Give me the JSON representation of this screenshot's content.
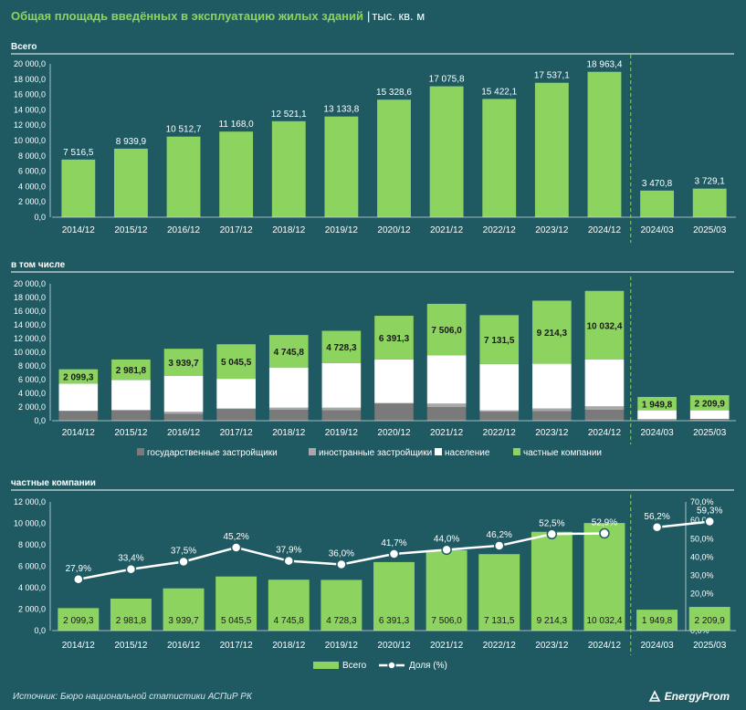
{
  "header": {
    "title": "Общая площадь введённых в эксплуатацию жилых зданий",
    "separator": "|",
    "unit": "тыс. кв. м"
  },
  "footer": {
    "source": "Источник: Бюро национальной статистики АСПиР РК",
    "logo": "EnergyProm"
  },
  "colors": {
    "background": "#1f5a63",
    "green": "#8dd35f",
    "grey_dark": "#7a7a7a",
    "grey_light": "#a8a8a8",
    "white": "#ffffff"
  },
  "chart_data": [
    {
      "type": "bar",
      "title": "Всего",
      "categories": [
        "2014/12",
        "2015/12",
        "2016/12",
        "2017/12",
        "2018/12",
        "2019/12",
        "2020/12",
        "2021/12",
        "2022/12",
        "2023/12",
        "2024/12",
        "2024/03",
        "2025/03"
      ],
      "values": [
        7516.5,
        8939.9,
        10512.7,
        11168.0,
        12521.1,
        13133.8,
        15328.6,
        17075.8,
        15422.1,
        17537.1,
        18963.4,
        3470.8,
        3729.1
      ],
      "labels": [
        "7 516,5",
        "8 939,9",
        "10 512,7",
        "11 168,0",
        "12 521,1",
        "13 133,8",
        "15 328,6",
        "17 075,8",
        "15 422,1",
        "17 537,1",
        "18 963,4",
        "3 470,8",
        "3 729,1"
      ],
      "ylim": [
        0,
        20000
      ],
      "yticks": [
        "0,0",
        "2 000,0",
        "4 000,0",
        "6 000,0",
        "8 000,0",
        "10 000,0",
        "12 000,0",
        "14 000,0",
        "16 000,0",
        "18 000,0",
        "20 000,0"
      ],
      "grid": false,
      "divider_after_index": 10
    },
    {
      "type": "bar",
      "stacked": true,
      "title": "в том числе",
      "categories": [
        "2014/12",
        "2015/12",
        "2016/12",
        "2017/12",
        "2018/12",
        "2019/12",
        "2020/12",
        "2021/12",
        "2022/12",
        "2023/12",
        "2024/12",
        "2024/03",
        "2025/03"
      ],
      "series": [
        {
          "name": "государственные застройщики",
          "color": "#7a7a7a",
          "values": [
            1400,
            1500,
            1000,
            1700,
            1600,
            1500,
            2500,
            2000,
            1300,
            1400,
            1600,
            200,
            250
          ]
        },
        {
          "name": "иностранные застройщики",
          "color": "#a8a8a8",
          "values": [
            50,
            50,
            300,
            100,
            300,
            400,
            100,
            500,
            200,
            400,
            500,
            20,
            20
          ]
        },
        {
          "name": "население",
          "color": "#ffffff",
          "values": [
            3967.2,
            4408.1,
            5273.0,
            4322.5,
            5875.3,
            6505.5,
            6337.3,
            7069.8,
            6790.6,
            6522.7,
            6831.0,
            1301.0,
            1249.2
          ]
        },
        {
          "name": "частные компании",
          "color": "#8dd35f",
          "values": [
            2099.3,
            2981.8,
            3939.7,
            5045.5,
            4745.8,
            4728.3,
            6391.3,
            7506.0,
            7131.5,
            9214.3,
            10032.4,
            1949.8,
            2209.9
          ]
        }
      ],
      "labels": [
        "2 099,3",
        "2 981,8",
        "3 939,7",
        "5 045,5",
        "4 745,8",
        "4 728,3",
        "6 391,3",
        "7 506,0",
        "7 131,5",
        "9 214,3",
        "10 032,4",
        "1 949,8",
        "2 209,9"
      ],
      "ylim": [
        0,
        20000
      ],
      "yticks": [
        "0,0",
        "2 000,0",
        "4 000,0",
        "6 000,0",
        "8 000,0",
        "10 000,0",
        "12 000,0",
        "14 000,0",
        "16 000,0",
        "18 000,0",
        "20 000,0"
      ],
      "legend": "bottom",
      "divider_after_index": 10
    },
    {
      "type": "bar+line",
      "title": "частные компании",
      "categories": [
        "2014/12",
        "2015/12",
        "2016/12",
        "2017/12",
        "2018/12",
        "2019/12",
        "2020/12",
        "2021/12",
        "2022/12",
        "2023/12",
        "2024/12",
        "2024/03",
        "2025/03"
      ],
      "series": [
        {
          "name": "Всего",
          "type": "bar",
          "axis": "left",
          "values": [
            2099.3,
            2981.8,
            3939.7,
            5045.5,
            4745.8,
            4728.3,
            6391.3,
            7506.0,
            7131.5,
            9214.3,
            10032.4,
            1949.8,
            2209.9
          ],
          "labels": [
            "2 099,3",
            "2 981,8",
            "3 939,7",
            "5 045,5",
            "4 745,8",
            "4 728,3",
            "6 391,3",
            "7 506,0",
            "7 131,5",
            "9 214,3",
            "10 032,4",
            "1 949,8",
            "2 209,9"
          ]
        },
        {
          "name": "Доля (%)",
          "type": "line",
          "axis": "right",
          "values": [
            27.9,
            33.4,
            37.5,
            45.2,
            37.9,
            36.0,
            41.7,
            44.0,
            46.2,
            52.5,
            52.9,
            56.2,
            59.3
          ],
          "labels": [
            "27,9%",
            "33,4%",
            "37,5%",
            "45,2%",
            "37,9%",
            "36,0%",
            "41,7%",
            "44,0%",
            "46,2%",
            "52,5%",
            "52,9%",
            "56,2%",
            "59,3%"
          ]
        }
      ],
      "ylim": [
        0,
        12000
      ],
      "yticks": [
        "0,0",
        "2 000,0",
        "4 000,0",
        "6 000,0",
        "8 000,0",
        "10 000,0",
        "12 000,0"
      ],
      "y2lim": [
        0,
        70
      ],
      "y2ticks": [
        "0,0%",
        "10,0%",
        "20,0%",
        "30,0%",
        "40,0%",
        "50,0%",
        "60,0%",
        "70,0%"
      ],
      "legend": "bottom",
      "divider_after_index": 10
    }
  ]
}
